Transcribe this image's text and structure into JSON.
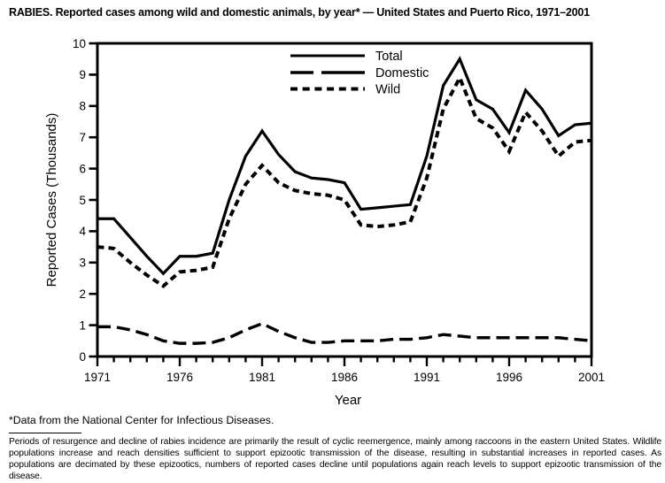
{
  "page": {
    "title": "RABIES. Reported cases among wild and domestic animals, by year* — United States and Puerto Rico, 1971–2001",
    "footnote": "*Data from the National Center for Infectious Diseases.",
    "note_paragraph": "Periods of resurgence and decline of rabies incidence are primarily the result of cyclic reemergence, mainly among raccoons in the eastern United States. Wildlife populations increase and reach densities sufficient to support epizootic transmission of the disease, resulting in substantial increases in reported cases. As populations are decimated by these epizootics, numbers of reported cases decline until populations again reach levels to support epizootic transmission of the disease."
  },
  "chart_data": {
    "type": "line",
    "title": "RABIES. Reported cases among wild and domestic animals, by year* — United States and Puerto Rico, 1971–2001",
    "xlabel": "Year",
    "ylabel": "Reported Cases (Thousands)",
    "xlim": [
      1971,
      2001
    ],
    "ylim": [
      0,
      10
    ],
    "x_major_ticks": [
      1971,
      1976,
      1981,
      1986,
      1991,
      1996,
      2001
    ],
    "y_ticks": [
      0,
      1,
      2,
      3,
      4,
      5,
      6,
      7,
      8,
      9,
      10
    ],
    "grid": false,
    "legend_position": "top-center-inside",
    "color": "#000000",
    "x": [
      1971,
      1972,
      1973,
      1974,
      1975,
      1976,
      1977,
      1978,
      1979,
      1980,
      1981,
      1982,
      1983,
      1984,
      1985,
      1986,
      1987,
      1988,
      1989,
      1990,
      1991,
      1992,
      1993,
      1994,
      1995,
      1996,
      1997,
      1998,
      1999,
      2000,
      2001
    ],
    "series": [
      {
        "name": "Total",
        "line_style": "solid",
        "values": [
          4.4,
          4.4,
          3.8,
          3.2,
          2.65,
          3.2,
          3.2,
          3.3,
          5.0,
          6.4,
          7.2,
          6.45,
          5.9,
          5.7,
          5.65,
          5.55,
          4.7,
          4.75,
          4.8,
          4.85,
          6.4,
          8.65,
          9.5,
          8.2,
          7.9,
          7.15,
          8.5,
          7.9,
          7.05,
          7.4,
          7.45
        ]
      },
      {
        "name": "Domestic",
        "line_style": "long-dash",
        "values": [
          0.95,
          0.95,
          0.85,
          0.7,
          0.5,
          0.42,
          0.42,
          0.45,
          0.6,
          0.85,
          1.05,
          0.8,
          0.6,
          0.45,
          0.45,
          0.5,
          0.5,
          0.5,
          0.55,
          0.55,
          0.6,
          0.7,
          0.65,
          0.6,
          0.6,
          0.6,
          0.6,
          0.6,
          0.6,
          0.55,
          0.5
        ]
      },
      {
        "name": "Wild",
        "line_style": "short-dash",
        "values": [
          3.5,
          3.45,
          3.0,
          2.6,
          2.25,
          2.7,
          2.75,
          2.85,
          4.4,
          5.5,
          6.1,
          5.55,
          5.3,
          5.2,
          5.15,
          5.0,
          4.2,
          4.15,
          4.2,
          4.3,
          5.7,
          7.9,
          8.9,
          7.6,
          7.3,
          6.55,
          7.8,
          7.2,
          6.4,
          6.85,
          6.9
        ]
      }
    ]
  }
}
